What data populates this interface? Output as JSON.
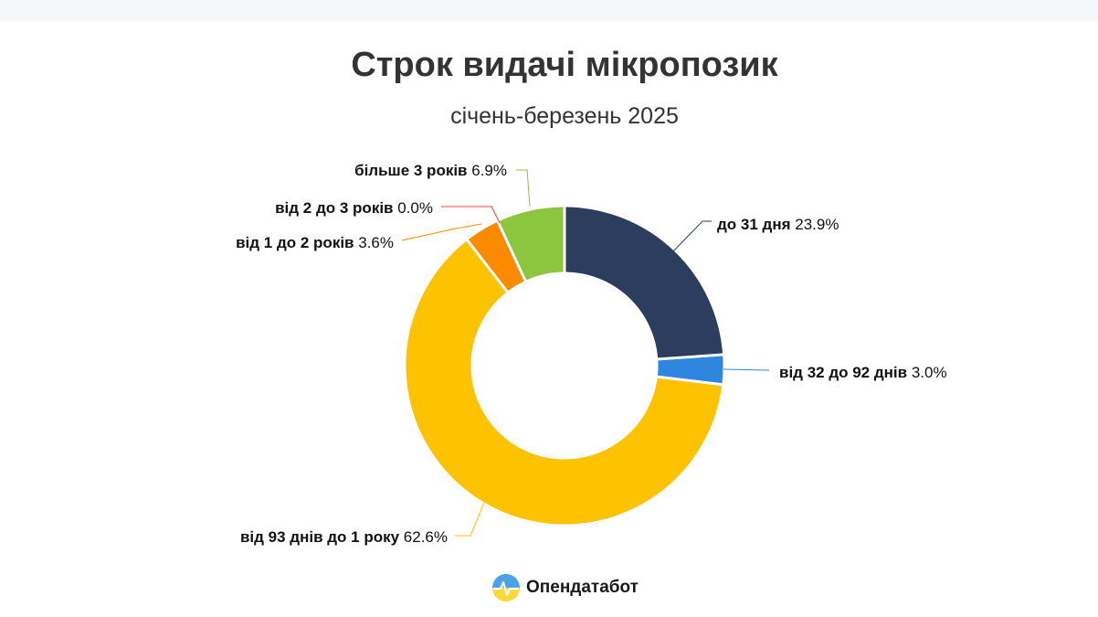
{
  "chart_data": {
    "type": "pie",
    "title": "Строк видачі мікропозик",
    "subtitle": "січень-березень 2025",
    "donut": true,
    "slices": [
      {
        "label": "до 31 дня",
        "value": 23.9,
        "value_text": "23.9%",
        "color": "#2d3d5e"
      },
      {
        "label": "від 32 до 92 днів",
        "value": 3.0,
        "value_text": "3.0%",
        "color": "#2e86de"
      },
      {
        "label": "від 93 днів до 1 року",
        "value": 62.6,
        "value_text": "62.6%",
        "color": "#fdc200"
      },
      {
        "label": "від 1 до 2 років",
        "value": 3.6,
        "value_text": "3.6%",
        "color": "#fb8a00"
      },
      {
        "label": "від 2 до 3 років",
        "value": 0.0,
        "value_text": "0.0%",
        "color": "#e84b3c"
      },
      {
        "label": "більше 3 років",
        "value": 6.9,
        "value_text": "6.9%",
        "color": "#8cc63f"
      }
    ]
  },
  "brand": {
    "name": "Опендатабот"
  }
}
